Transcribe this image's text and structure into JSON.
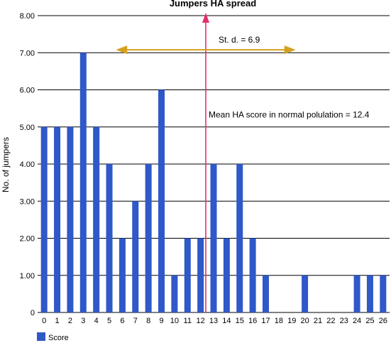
{
  "chart_data": {
    "type": "bar",
    "title": "Jumpers HA spread",
    "xlabel": "",
    "ylabel": "No. of jumpers",
    "ylim": [
      0,
      8
    ],
    "yticks": [
      "0",
      "1.00",
      "2.00",
      "3.00",
      "4.00",
      "5.00",
      "6.00",
      "7.00",
      "8.00"
    ],
    "categories": [
      "0",
      "1",
      "2",
      "3",
      "4",
      "5",
      "6",
      "7",
      "8",
      "9",
      "10",
      "11",
      "12",
      "13",
      "14",
      "15",
      "16",
      "17",
      "18",
      "19",
      "20",
      "21",
      "22",
      "23",
      "24",
      "25",
      "26"
    ],
    "series": [
      {
        "name": "Score",
        "values": [
          5,
          5,
          5,
          7,
          5,
          4,
          2,
          3,
          4,
          6,
          1,
          2,
          2,
          4,
          2,
          4,
          2,
          1,
          0,
          0,
          1,
          0,
          0,
          0,
          1,
          1,
          1
        ],
        "color": "#2f58c8"
      }
    ],
    "grid": true,
    "legend": "bottom-left",
    "annotations": {
      "mean_label": "Mean HA score in normal polulation = 12.4",
      "mean_value": 12.4,
      "mean_line_color": "#e0306a",
      "sd_label": "St. d. = 6.9",
      "sd_value": 6.9,
      "sd_arrow_color": "#d4a020"
    }
  }
}
